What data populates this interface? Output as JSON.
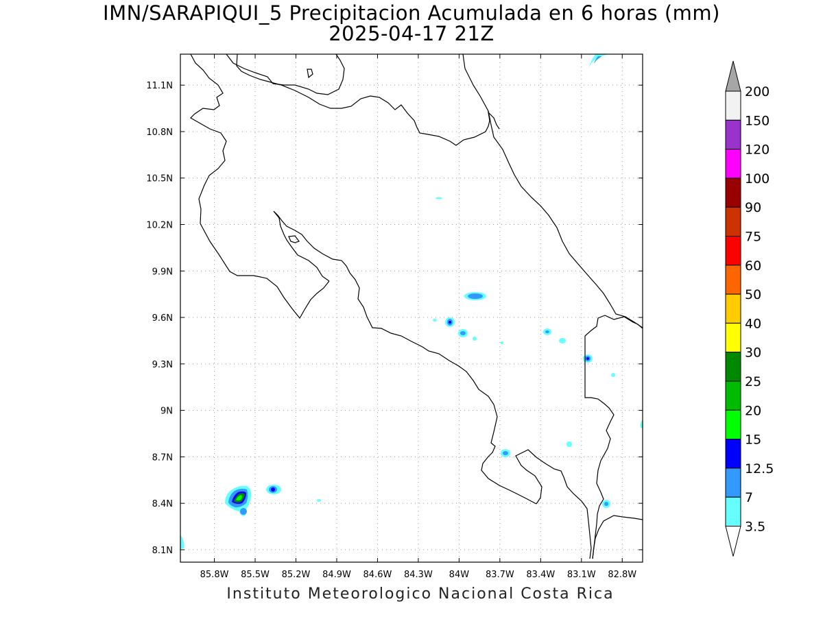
{
  "title": {
    "line1": "IMN/SARAPIQUI_5 Precipitacion Acumulada en 6 horas (mm)",
    "line2": "2025-04-17 21Z"
  },
  "credit": "Instituto Meteorologico Nacional Costa Rica",
  "map": {
    "lon_range": [
      -86.05,
      -82.65
    ],
    "lat_range": [
      8.02,
      11.3
    ],
    "x_ticks": [
      "85.8W",
      "85.5W",
      "85.2W",
      "84.9W",
      "84.6W",
      "84.3W",
      "84W",
      "83.7W",
      "83.4W",
      "83.1W",
      "82.8W"
    ],
    "y_ticks": [
      "11.1N",
      "10.8N",
      "10.5N",
      "10.2N",
      "9.9N",
      "9.6N",
      "9.3N",
      "9N",
      "8.7N",
      "8.4N",
      "8.1N"
    ],
    "grid": "dotted"
  },
  "colorbar": {
    "levels": [
      "200",
      "150",
      "120",
      "100",
      "90",
      "75",
      "60",
      "50",
      "40",
      "30",
      "25",
      "20",
      "15",
      "12.5",
      "7",
      "3.5"
    ],
    "colors": [
      "#f2f2f2",
      "#9933cc",
      "#ff00ff",
      "#990000",
      "#cc3300",
      "#ff0000",
      "#ff6600",
      "#ffcc00",
      "#ffff00",
      "#008800",
      "#00bb00",
      "#00ff00",
      "#0000ff",
      "#3399ff",
      "#66ffff"
    ],
    "top_arrow_color": "#a6a6a6",
    "bottom_arrow_color": "#ffffff"
  }
}
